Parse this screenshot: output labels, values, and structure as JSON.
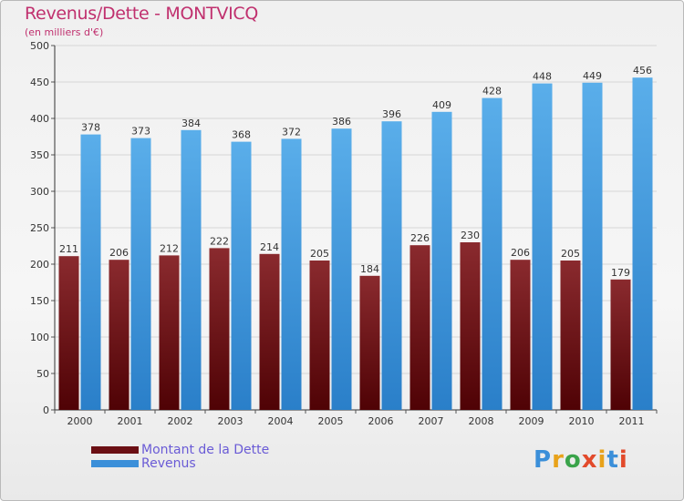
{
  "header": {
    "title": "Revenus/Dette - MONTVICQ",
    "subtitle": "(en milliers d'€)"
  },
  "legend": [
    {
      "label": "Montant de la Dette",
      "color": "#6b0f14"
    },
    {
      "label": "Revenus",
      "color": "#3b8fd9"
    }
  ],
  "logo": {
    "text": "Proxiti"
  },
  "chart_data": {
    "type": "bar",
    "categories": [
      "2000",
      "2001",
      "2002",
      "2003",
      "2004",
      "2005",
      "2006",
      "2007",
      "2008",
      "2009",
      "2010",
      "2011"
    ],
    "series": [
      {
        "name": "Montant de la Dette",
        "color": "#6b0f14",
        "values": [
          211,
          206,
          212,
          222,
          214,
          205,
          184,
          226,
          230,
          206,
          205,
          179
        ]
      },
      {
        "name": "Revenus",
        "color": "#3b8fd9",
        "values": [
          378,
          373,
          384,
          368,
          372,
          386,
          396,
          409,
          428,
          448,
          449,
          456
        ]
      }
    ],
    "ylim": [
      0,
      500
    ],
    "yticks": [
      0,
      50,
      100,
      150,
      200,
      250,
      300,
      350,
      400,
      450,
      500
    ],
    "grid": true,
    "legend_position": "bottom-left"
  }
}
